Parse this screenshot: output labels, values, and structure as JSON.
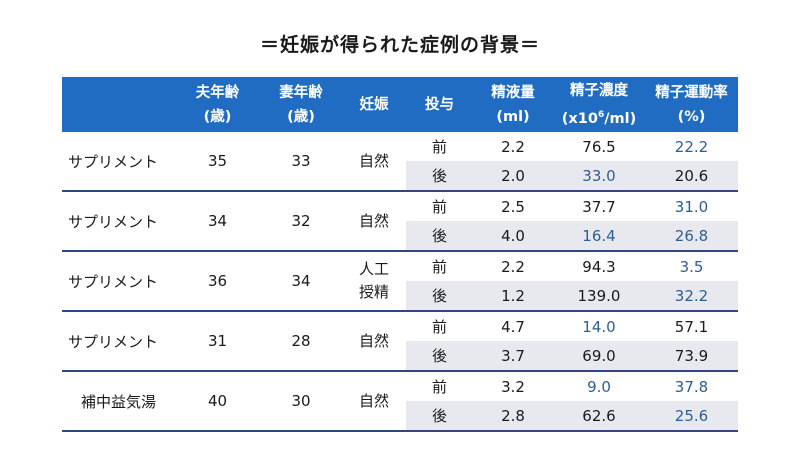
{
  "title": "＝妊娠が得られた症例の背景＝",
  "headers": [
    {
      "l1": "",
      "l2": ""
    },
    {
      "l1": "夫年齢",
      "l2": "(歳)"
    },
    {
      "l1": "妻年齢",
      "l2": "(歳)"
    },
    {
      "l1": "妊娠",
      "l2": ""
    },
    {
      "l1": "投与",
      "l2": ""
    },
    {
      "l1": "精液量",
      "l2": "(ml)"
    },
    {
      "l1": "精子濃度",
      "l2_pre": "(x10",
      "l2_sup": "6",
      "l2_post": "/ml)"
    },
    {
      "l1": "精子運動率",
      "l2": "(%)"
    }
  ],
  "rows": [
    {
      "treatment": "サプリメント",
      "husband_age": "35",
      "wife_age": "33",
      "pregnancy": [
        "自然"
      ],
      "sub": [
        {
          "timing": "前",
          "volume": "2.2",
          "conc": "76.5",
          "conc_blue": false,
          "motility": "22.2",
          "mot_blue": true
        },
        {
          "timing": "後",
          "volume": "2.0",
          "conc": "33.0",
          "conc_blue": true,
          "motility": "20.6",
          "mot_blue": false
        }
      ]
    },
    {
      "treatment": "サプリメント",
      "husband_age": "34",
      "wife_age": "32",
      "pregnancy": [
        "自然"
      ],
      "sub": [
        {
          "timing": "前",
          "volume": "2.5",
          "conc": "37.7",
          "conc_blue": false,
          "motility": "31.0",
          "mot_blue": true
        },
        {
          "timing": "後",
          "volume": "4.0",
          "conc": "16.4",
          "conc_blue": true,
          "motility": "26.8",
          "mot_blue": true
        }
      ]
    },
    {
      "treatment": "サプリメント",
      "husband_age": "36",
      "wife_age": "34",
      "pregnancy": [
        "人工",
        "授精"
      ],
      "sub": [
        {
          "timing": "前",
          "volume": "2.2",
          "conc": "94.3",
          "conc_blue": false,
          "motility": "3.5",
          "mot_blue": true
        },
        {
          "timing": "後",
          "volume": "1.2",
          "conc": "139.0",
          "conc_blue": false,
          "motility": "32.2",
          "mot_blue": true
        }
      ]
    },
    {
      "treatment": "サプリメント",
      "husband_age": "31",
      "wife_age": "28",
      "pregnancy": [
        "自然"
      ],
      "sub": [
        {
          "timing": "前",
          "volume": "4.7",
          "conc": "14.0",
          "conc_blue": true,
          "motility": "57.1",
          "mot_blue": false
        },
        {
          "timing": "後",
          "volume": "3.7",
          "conc": "69.0",
          "conc_blue": false,
          "motility": "73.9",
          "mot_blue": false
        }
      ]
    },
    {
      "treatment": "補中益気湯",
      "husband_age": "40",
      "wife_age": "30",
      "pregnancy": [
        "自然"
      ],
      "sub": [
        {
          "timing": "前",
          "volume": "3.2",
          "conc": "9.0",
          "conc_blue": true,
          "motility": "37.8",
          "mot_blue": true
        },
        {
          "timing": "後",
          "volume": "2.8",
          "conc": "62.6",
          "conc_blue": false,
          "motility": "25.6",
          "mot_blue": true
        }
      ]
    }
  ],
  "colors": {
    "header_bg": "#1f6cc2",
    "highlight_text": "#2e5d95",
    "alt_row": "#e7e9ee",
    "divider": "#2f4a7a"
  }
}
